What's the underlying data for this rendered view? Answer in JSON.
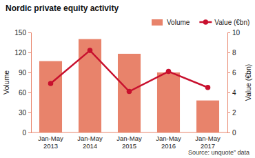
{
  "chart_data": {
    "type": "bar",
    "title": "Nordic private equity activity",
    "categories": [
      "Jan-May 2013",
      "Jan-May 2014",
      "Jan-May 2015",
      "Jan-May 2016",
      "Jan-May 2017"
    ],
    "series": [
      {
        "name": "Volume",
        "type": "bar",
        "color": "#e8836b",
        "values": [
          107,
          140,
          118,
          90,
          48
        ]
      },
      {
        "name": "Value (€bn)",
        "type": "line",
        "color": "#c8102e",
        "marker": "circle",
        "axis": "y2",
        "values": [
          4.9,
          8.2,
          4.1,
          6.1,
          4.5
        ]
      }
    ],
    "ylabel": "Volume",
    "y2label": "Value (€bn)",
    "ylim": [
      0,
      150
    ],
    "yticks": [
      0,
      30,
      60,
      90,
      120,
      150
    ],
    "y2lim": [
      0,
      10
    ],
    "y2ticks": [
      0,
      2,
      4,
      6,
      8,
      10
    ],
    "grid": false,
    "legend": "top-right",
    "source": "Source: unquote” data"
  }
}
